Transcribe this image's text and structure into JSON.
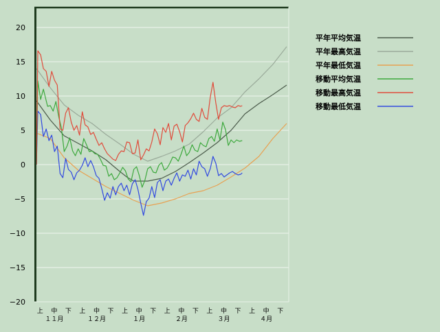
{
  "chart_data": {
    "type": "line",
    "title": "",
    "xlabel": "",
    "ylabel": "",
    "ylim": [
      -20,
      23
    ],
    "grid": true,
    "legend_position": "top-right",
    "yticks": [
      20,
      15,
      10,
      5,
      0,
      -5,
      -10,
      -15,
      -20
    ],
    "xticks": [
      "上",
      "中",
      "下",
      "上",
      "中",
      "下",
      "上",
      "中",
      "下",
      "上",
      "中",
      "下",
      "上",
      "中",
      "下",
      "上",
      "中",
      "下"
    ],
    "month_labels": [
      "１１月",
      "１２月",
      "１月",
      "２月",
      "３月",
      "４月"
    ],
    "series": [
      {
        "name": "平年平均気温",
        "color": "#4a5a4a",
        "x": [
          0,
          10,
          20,
          30,
          40,
          50,
          60,
          65,
          70,
          80,
          90,
          100,
          110,
          120,
          130,
          140,
          150,
          160,
          170,
          180
        ],
        "y": [
          9.3,
          6.5,
          4.2,
          3.1,
          2.0,
          0.7,
          -1.0,
          -1.8,
          -2.4,
          -2.4,
          -2.0,
          -1.0,
          0.3,
          1.7,
          3.2,
          5.0,
          7.4,
          8.9,
          10.2,
          11.6
        ]
      },
      {
        "name": "平年最高気温",
        "color": "#9aaa9a",
        "x": [
          0,
          10,
          20,
          30,
          40,
          50,
          60,
          70,
          80,
          90,
          100,
          110,
          120,
          130,
          140,
          150,
          160,
          170,
          180
        ],
        "y": [
          14.0,
          11.2,
          8.7,
          7.2,
          6.0,
          4.4,
          3.0,
          1.5,
          0.5,
          1.2,
          2.0,
          3.0,
          4.8,
          6.8,
          8.3,
          10.6,
          12.5,
          14.6,
          17.2
        ]
      },
      {
        "name": "平年最低気温",
        "color": "#e8a050",
        "x": [
          0,
          10,
          20,
          30,
          40,
          50,
          60,
          70,
          80,
          90,
          100,
          110,
          120,
          130,
          140,
          150,
          160,
          170,
          180
        ],
        "y": [
          4.6,
          3.8,
          1.0,
          -0.8,
          -2.0,
          -3.2,
          -4.2,
          -5.2,
          -6.0,
          -5.6,
          -5.0,
          -4.2,
          -3.8,
          -3.0,
          -1.8,
          -0.5,
          1.2,
          3.8,
          6.0
        ]
      },
      {
        "name": "移動平均気温",
        "color": "#3ca83c",
        "x": [
          0,
          1,
          3,
          5,
          8,
          10,
          12,
          14,
          16,
          18,
          20,
          22,
          24,
          26,
          28,
          30,
          32,
          34,
          36,
          38,
          40,
          42,
          44,
          46,
          48,
          50,
          52,
          54,
          56,
          58,
          60,
          62,
          64,
          66,
          68,
          70,
          72,
          74,
          76,
          78,
          80,
          82,
          84,
          86,
          88,
          90,
          92,
          94,
          96,
          98,
          100,
          102,
          104,
          106,
          108,
          110,
          112,
          114,
          116,
          118,
          120,
          122,
          124,
          126,
          128,
          130,
          132,
          134,
          136,
          138,
          140,
          142,
          144,
          146,
          148
        ],
        "y": [
          0,
          12.2,
          9.5,
          11.0,
          8.5,
          8.6,
          7.8,
          9.2,
          7.0,
          5.3,
          1.9,
          2.7,
          3.9,
          2.0,
          1.3,
          2.3,
          1.5,
          3.8,
          2.9,
          1.9,
          2.0,
          1.6,
          1.5,
          0.8,
          -0.1,
          -0.2,
          -1.7,
          -1.3,
          -2.2,
          -1.9,
          -1.2,
          -0.4,
          -0.9,
          -2.1,
          -2.5,
          -0.7,
          -0.3,
          -1.6,
          -3.3,
          -2.3,
          -0.6,
          -0.3,
          -1.1,
          -1.2,
          -0.1,
          0.3,
          -0.8,
          -0.5,
          0.2,
          1.1,
          1.0,
          0.5,
          1.5,
          2.7,
          1.3,
          1.8,
          2.9,
          2.1,
          1.9,
          3.2,
          2.8,
          2.6,
          3.8,
          4.1,
          3.4,
          5.2,
          3.6,
          6.2,
          5.1,
          2.8,
          3.6,
          3.2,
          3.6,
          3.4,
          3.5
        ]
      },
      {
        "name": "移動最高気温",
        "color": "#e04a3a",
        "x": [
          0,
          1,
          3,
          5,
          7,
          9,
          11,
          13,
          15,
          17,
          19,
          21,
          23,
          25,
          27,
          29,
          31,
          33,
          35,
          37,
          39,
          41,
          43,
          45,
          47,
          49,
          51,
          53,
          55,
          57,
          59,
          61,
          63,
          65,
          67,
          69,
          71,
          73,
          75,
          77,
          79,
          81,
          83,
          85,
          87,
          89,
          91,
          93,
          95,
          97,
          99,
          101,
          103,
          105,
          107,
          109,
          111,
          113,
          115,
          117,
          119,
          121,
          123,
          125,
          127,
          129,
          131,
          133,
          135,
          137,
          139,
          141,
          143,
          145,
          147,
          148
        ],
        "y": [
          0,
          16.6,
          16.0,
          14.0,
          13.6,
          11.4,
          13.6,
          12.3,
          11.6,
          5.2,
          5.0,
          7.5,
          8.3,
          6.2,
          5.0,
          5.7,
          4.3,
          7.7,
          5.8,
          5.5,
          4.4,
          4.7,
          3.7,
          2.8,
          3.2,
          2.3,
          1.6,
          1.2,
          0.8,
          0.6,
          1.5,
          2.0,
          1.9,
          3.3,
          3.2,
          1.6,
          1.7,
          3.6,
          0.7,
          1.4,
          2.3,
          2.0,
          3.3,
          5.2,
          4.5,
          2.9,
          5.4,
          4.7,
          6.0,
          3.6,
          5.6,
          5.9,
          4.8,
          3.3,
          5.7,
          6.1,
          6.7,
          7.5,
          6.6,
          6.3,
          8.2,
          6.9,
          6.6,
          9.8,
          12.0,
          9.0,
          6.6,
          8.3,
          8.6,
          8.5,
          8.6,
          8.4,
          8.3,
          8.6,
          8.5,
          8.6
        ]
      },
      {
        "name": "移動最低気温",
        "color": "#3048e0",
        "x": [
          0,
          1,
          3,
          5,
          7,
          9,
          11,
          13,
          15,
          17,
          19,
          21,
          23,
          25,
          27,
          29,
          31,
          33,
          35,
          37,
          39,
          41,
          43,
          45,
          47,
          49,
          51,
          53,
          55,
          57,
          59,
          61,
          63,
          65,
          67,
          69,
          71,
          73,
          75,
          77,
          79,
          81,
          83,
          85,
          87,
          89,
          91,
          93,
          95,
          97,
          99,
          101,
          103,
          105,
          107,
          109,
          111,
          113,
          115,
          117,
          119,
          121,
          123,
          125,
          127,
          129,
          131,
          133,
          135,
          137,
          139,
          141,
          143,
          145,
          147,
          148
        ],
        "y": [
          0,
          7.8,
          7.3,
          4.1,
          5.2,
          3.5,
          4.3,
          1.9,
          2.7,
          -1.3,
          -1.9,
          0.9,
          -0.7,
          -1.1,
          -2.2,
          -1.2,
          -0.8,
          -0.1,
          1.0,
          -0.3,
          0.6,
          -0.3,
          -1.6,
          -2.0,
          -3.5,
          -5.2,
          -4.1,
          -4.9,
          -3.2,
          -4.4,
          -3.2,
          -2.7,
          -3.8,
          -3.0,
          -4.4,
          -2.8,
          -2.2,
          -3.6,
          -5.6,
          -7.4,
          -5.4,
          -4.9,
          -3.2,
          -4.8,
          -2.6,
          -2.2,
          -3.8,
          -2.4,
          -2.1,
          -3.0,
          -2.0,
          -1.2,
          -2.4,
          -1.5,
          -1.7,
          -0.8,
          -2.1,
          -0.6,
          -1.5,
          0.5,
          -0.3,
          -0.6,
          -1.7,
          -0.6,
          1.2,
          0.2,
          -1.6,
          -1.3,
          -1.8,
          -1.5,
          -1.2,
          -1.0,
          -1.3,
          -1.5,
          -1.4,
          -1.2
        ]
      }
    ]
  }
}
